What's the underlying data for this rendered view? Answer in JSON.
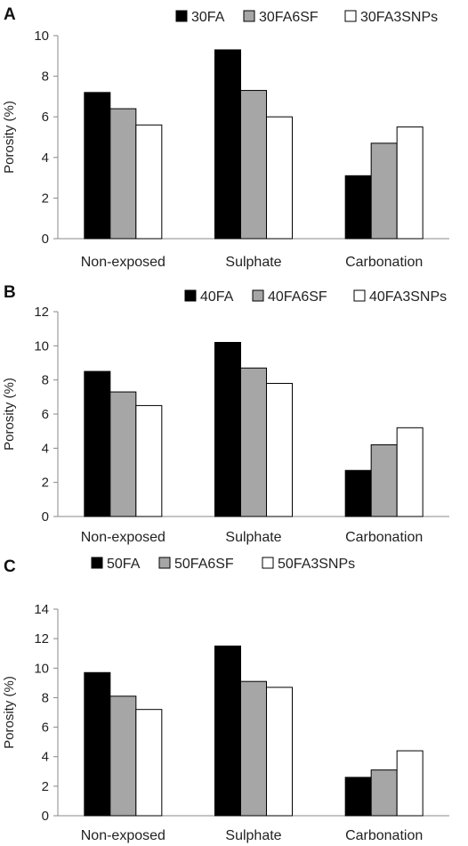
{
  "chart_data": [
    {
      "panel_letter": "A",
      "type": "bar",
      "categories": [
        "Non-exposed",
        "Sulphate",
        "Carbonation"
      ],
      "series": [
        {
          "name": "30FA",
          "values": [
            7.2,
            9.3,
            3.1
          ],
          "color": "#000000"
        },
        {
          "name": "30FA6SF",
          "values": [
            6.4,
            7.3,
            4.7
          ],
          "color": "#a6a6a6"
        },
        {
          "name": "30FA3SNPs",
          "values": [
            5.6,
            6.0,
            5.5
          ],
          "color": "#ffffff"
        }
      ],
      "ylabel": "Porosity (%)",
      "ylim": [
        0,
        10
      ],
      "yticks": [
        0,
        2,
        4,
        6,
        8,
        10
      ],
      "legend_position": "top-right",
      "grid": false
    },
    {
      "panel_letter": "B",
      "type": "bar",
      "categories": [
        "Non-exposed",
        "Sulphate",
        "Carbonation"
      ],
      "series": [
        {
          "name": "40FA",
          "values": [
            8.5,
            10.2,
            2.7
          ],
          "color": "#000000"
        },
        {
          "name": "40FA6SF",
          "values": [
            7.3,
            8.7,
            4.2
          ],
          "color": "#a6a6a6"
        },
        {
          "name": "40FA3SNPs",
          "values": [
            6.5,
            7.8,
            5.2
          ],
          "color": "#ffffff"
        }
      ],
      "ylabel": "Porosity (%)",
      "ylim": [
        0,
        12
      ],
      "yticks": [
        0,
        2,
        4,
        6,
        8,
        10,
        12
      ],
      "legend_position": "top-right",
      "grid": false
    },
    {
      "panel_letter": "C",
      "type": "bar",
      "categories": [
        "Non-exposed",
        "Sulphate",
        "Carbonation"
      ],
      "series": [
        {
          "name": "50FA",
          "values": [
            9.7,
            11.5,
            2.6
          ],
          "color": "#000000"
        },
        {
          "name": "50FA6SF",
          "values": [
            8.1,
            9.1,
            3.1
          ],
          "color": "#a6a6a6"
        },
        {
          "name": "50FA3SNPs",
          "values": [
            7.2,
            8.7,
            4.4
          ],
          "color": "#ffffff"
        }
      ],
      "ylabel": "Porosity (%)",
      "ylim": [
        0,
        14
      ],
      "yticks": [
        0,
        2,
        4,
        6,
        8,
        10,
        12,
        14
      ],
      "legend_position": "top",
      "grid": false
    }
  ]
}
